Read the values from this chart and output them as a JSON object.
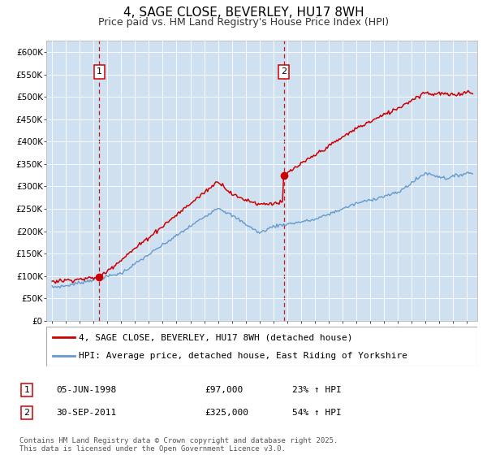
{
  "title": "4, SAGE CLOSE, BEVERLEY, HU17 8WH",
  "subtitle": "Price paid vs. HM Land Registry's House Price Index (HPI)",
  "bg_color": "#cfe0f0",
  "fig_bg": "#ffffff",
  "ylim": [
    0,
    625000
  ],
  "ytick_vals": [
    0,
    50000,
    100000,
    150000,
    200000,
    250000,
    300000,
    350000,
    400000,
    450000,
    500000,
    550000,
    600000
  ],
  "ytick_labels": [
    "£0",
    "£50K",
    "£100K",
    "£150K",
    "£200K",
    "£250K",
    "£300K",
    "£350K",
    "£400K",
    "£450K",
    "£500K",
    "£550K",
    "£600K"
  ],
  "xlim": [
    1994.58,
    2025.75
  ],
  "xtick_years": [
    1995,
    1996,
    1997,
    1998,
    1999,
    2000,
    2001,
    2002,
    2003,
    2004,
    2005,
    2006,
    2007,
    2008,
    2009,
    2010,
    2011,
    2012,
    2013,
    2014,
    2015,
    2016,
    2017,
    2018,
    2019,
    2020,
    2021,
    2022,
    2023,
    2024,
    2025
  ],
  "purchase1_x": 1998.42,
  "purchase1_y": 97000,
  "purchase2_x": 2011.75,
  "purchase2_y": 325000,
  "hpi_color": "#6699cc",
  "price_color": "#cc0000",
  "grid_color": "#ffffff",
  "legend_line1": "4, SAGE CLOSE, BEVERLEY, HU17 8WH (detached house)",
  "legend_line2": "HPI: Average price, detached house, East Riding of Yorkshire",
  "table_row1": [
    "1",
    "05-JUN-1998",
    "£97,000",
    "23% ↑ HPI"
  ],
  "table_row2": [
    "2",
    "30-SEP-2011",
    "£325,000",
    "54% ↑ HPI"
  ],
  "footer": "Contains HM Land Registry data © Crown copyright and database right 2025.\nThis data is licensed under the Open Government Licence v3.0."
}
